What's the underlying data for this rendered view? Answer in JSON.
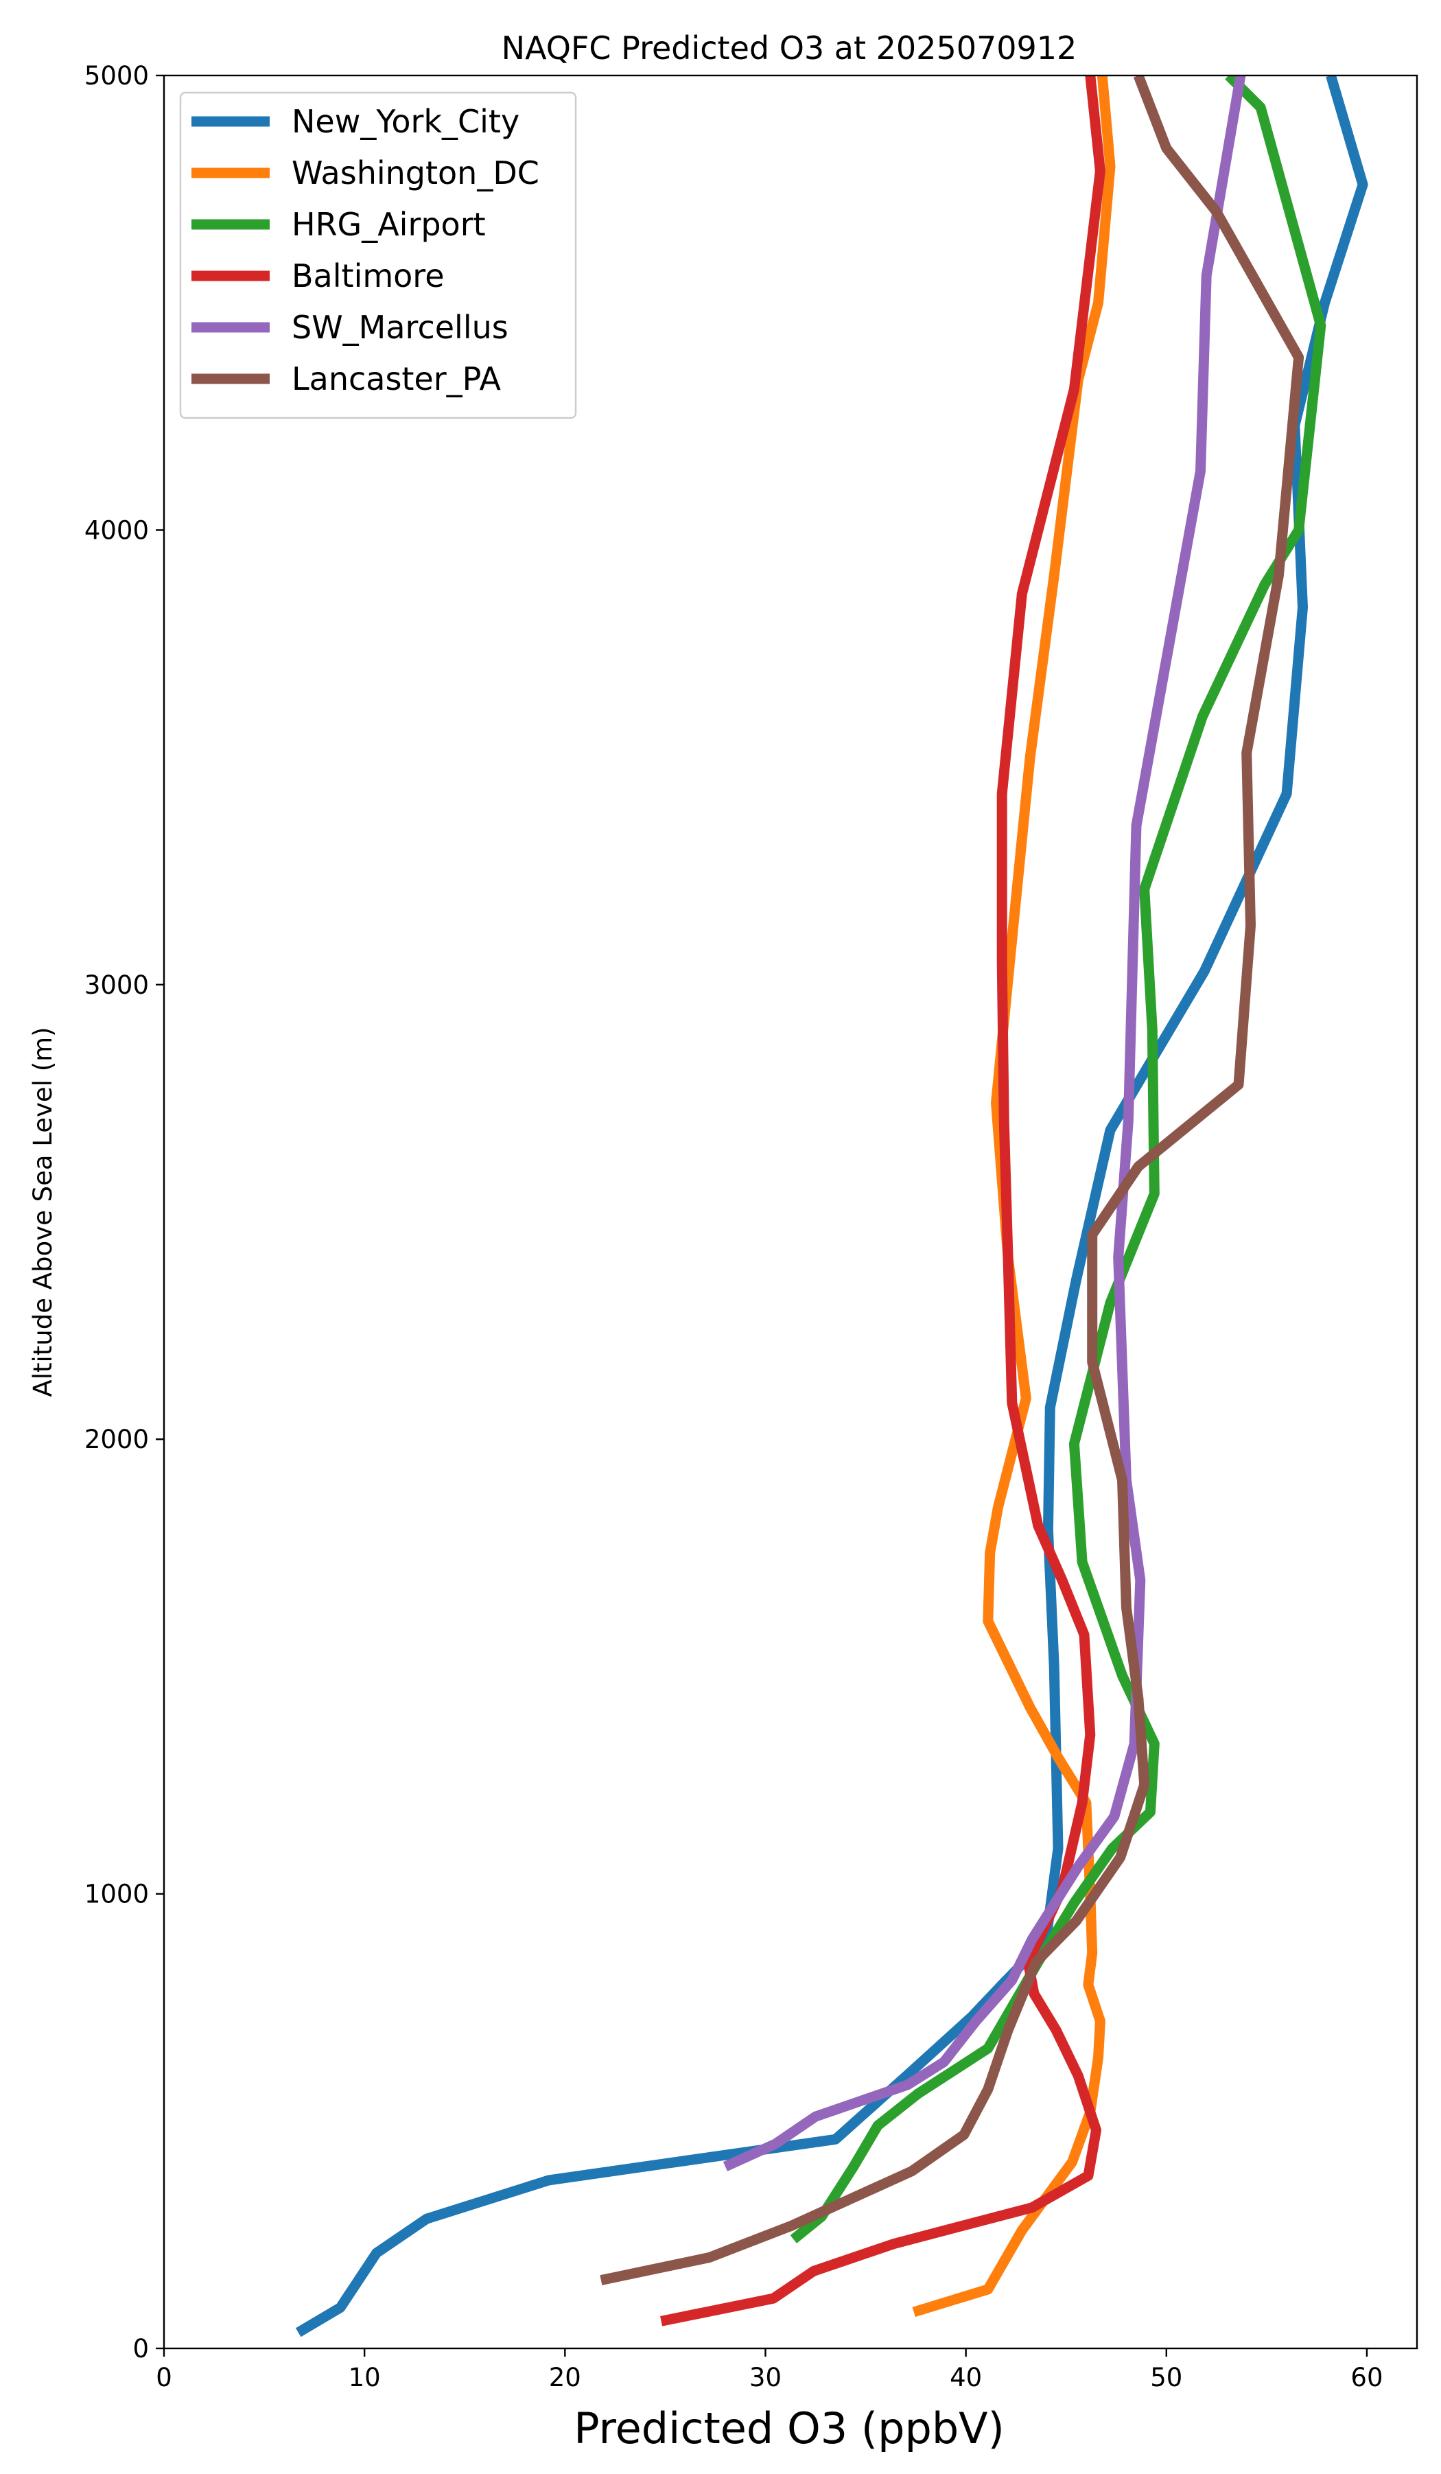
{
  "chart_data": {
    "type": "line",
    "title": "NAQFC Predicted O3 at 2025070912",
    "xlabel": "Predicted O3 (ppbV)",
    "ylabel": "Altitude Above Sea Level (m)",
    "xlim": [
      0,
      62.5
    ],
    "ylim": [
      0,
      5000
    ],
    "xticks": [
      0,
      10,
      20,
      30,
      40,
      50,
      60
    ],
    "yticks": [
      0,
      1000,
      2000,
      3000,
      4000,
      5000
    ],
    "grid": false,
    "legend_position": "top-left",
    "series": [
      {
        "name": "New_York_City",
        "color": "#1f77b4",
        "points": [
          [
            6.7,
            35
          ],
          [
            8.8,
            90
          ],
          [
            10.6,
            210
          ],
          [
            13.1,
            285
          ],
          [
            19.2,
            370
          ],
          [
            33.5,
            460
          ],
          [
            37.3,
            610
          ],
          [
            40.3,
            730
          ],
          [
            41.8,
            800
          ],
          [
            44.0,
            900
          ],
          [
            44.6,
            1100
          ],
          [
            44.4,
            1500
          ],
          [
            44.1,
            1800
          ],
          [
            44.2,
            2070
          ],
          [
            45.5,
            2350
          ],
          [
            47.2,
            2680
          ],
          [
            51.9,
            3030
          ],
          [
            56.0,
            3420
          ],
          [
            56.8,
            3830
          ],
          [
            56.4,
            4230
          ],
          [
            57.9,
            4500
          ],
          [
            59.8,
            4760
          ],
          [
            58.2,
            5000
          ]
        ]
      },
      {
        "name": "Washington_DC",
        "color": "#ff7f0e",
        "points": [
          [
            37.4,
            80
          ],
          [
            41.1,
            130
          ],
          [
            42.8,
            260
          ],
          [
            45.3,
            410
          ],
          [
            46.2,
            520
          ],
          [
            46.6,
            640
          ],
          [
            46.7,
            720
          ],
          [
            46.1,
            800
          ],
          [
            46.3,
            870
          ],
          [
            46.2,
            1000
          ],
          [
            46.0,
            1200
          ],
          [
            44.6,
            1300
          ],
          [
            43.2,
            1410
          ],
          [
            41.1,
            1600
          ],
          [
            41.2,
            1750
          ],
          [
            41.6,
            1850
          ],
          [
            43.0,
            2090
          ],
          [
            42.1,
            2400
          ],
          [
            41.5,
            2740
          ],
          [
            42.3,
            3100
          ],
          [
            43.2,
            3500
          ],
          [
            44.4,
            3900
          ],
          [
            45.6,
            4330
          ],
          [
            46.6,
            4500
          ],
          [
            47.2,
            4800
          ],
          [
            46.8,
            5000
          ]
        ]
      },
      {
        "name": "HRG_Airport",
        "color": "#2ca02c",
        "points": [
          [
            31.4,
            240
          ],
          [
            32.8,
            290
          ],
          [
            34.4,
            400
          ],
          [
            35.6,
            490
          ],
          [
            37.6,
            560
          ],
          [
            41.1,
            660
          ],
          [
            43.6,
            850
          ],
          [
            45.4,
            980
          ],
          [
            47.3,
            1100
          ],
          [
            49.2,
            1180
          ],
          [
            49.4,
            1330
          ],
          [
            47.8,
            1480
          ],
          [
            45.8,
            1730
          ],
          [
            45.4,
            1990
          ],
          [
            47.2,
            2300
          ],
          [
            49.4,
            2540
          ],
          [
            49.3,
            2900
          ],
          [
            48.9,
            3210
          ],
          [
            51.8,
            3590
          ],
          [
            54.9,
            3880
          ],
          [
            56.6,
            4000
          ],
          [
            57.7,
            4450
          ],
          [
            54.7,
            4930
          ],
          [
            53.1,
            5000
          ]
        ]
      },
      {
        "name": "Baltimore",
        "color": "#d62728",
        "points": [
          [
            24.8,
            60
          ],
          [
            30.4,
            110
          ],
          [
            32.4,
            170
          ],
          [
            36.4,
            230
          ],
          [
            43.3,
            310
          ],
          [
            46.1,
            380
          ],
          [
            46.5,
            480
          ],
          [
            45.6,
            600
          ],
          [
            44.5,
            700
          ],
          [
            43.4,
            780
          ],
          [
            43.1,
            850
          ],
          [
            44.8,
            1010
          ],
          [
            45.8,
            1200
          ],
          [
            46.2,
            1350
          ],
          [
            45.9,
            1570
          ],
          [
            44.8,
            1690
          ],
          [
            43.6,
            1810
          ],
          [
            42.3,
            2080
          ],
          [
            42.1,
            2400
          ],
          [
            41.9,
            2700
          ],
          [
            41.8,
            3050
          ],
          [
            41.8,
            3420
          ],
          [
            42.8,
            3860
          ],
          [
            45.4,
            4310
          ],
          [
            46.7,
            4790
          ],
          [
            46.2,
            5000
          ]
        ]
      },
      {
        "name": "SW_Marcellus",
        "color": "#9467bd",
        "points": [
          [
            28.0,
            400
          ],
          [
            30.5,
            450
          ],
          [
            32.5,
            510
          ],
          [
            37.1,
            580
          ],
          [
            38.9,
            630
          ],
          [
            40.5,
            720
          ],
          [
            42.3,
            810
          ],
          [
            43.3,
            900
          ],
          [
            45.6,
            1060
          ],
          [
            47.4,
            1170
          ],
          [
            48.4,
            1330
          ],
          [
            48.7,
            1690
          ],
          [
            48.0,
            1910
          ],
          [
            47.6,
            2400
          ],
          [
            48.1,
            2700
          ],
          [
            48.5,
            3350
          ],
          [
            51.7,
            4130
          ],
          [
            52.0,
            4560
          ],
          [
            53.7,
            5000
          ]
        ]
      },
      {
        "name": "Lancaster_PA",
        "color": "#8c564b",
        "points": [
          [
            21.8,
            150
          ],
          [
            27.2,
            200
          ],
          [
            31.3,
            270
          ],
          [
            37.3,
            390
          ],
          [
            39.9,
            470
          ],
          [
            41.1,
            570
          ],
          [
            42.1,
            700
          ],
          [
            43.5,
            850
          ],
          [
            45.5,
            940
          ],
          [
            47.7,
            1080
          ],
          [
            48.9,
            1240
          ],
          [
            48.6,
            1430
          ],
          [
            48.0,
            1630
          ],
          [
            47.8,
            1910
          ],
          [
            46.3,
            2170
          ],
          [
            46.3,
            2450
          ],
          [
            48.6,
            2600
          ],
          [
            53.6,
            2780
          ],
          [
            54.2,
            3130
          ],
          [
            54.0,
            3510
          ],
          [
            55.6,
            3900
          ],
          [
            56.6,
            4380
          ],
          [
            52.5,
            4700
          ],
          [
            50.0,
            4840
          ],
          [
            48.6,
            5000
          ]
        ]
      }
    ]
  }
}
